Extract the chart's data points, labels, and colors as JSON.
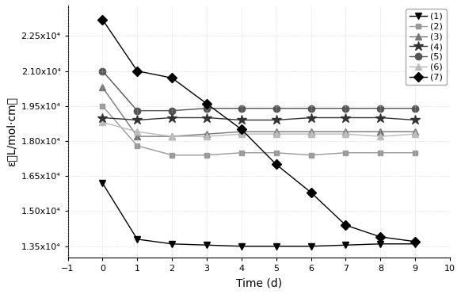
{
  "series": [
    {
      "label": "(1)",
      "marker": "v",
      "color": "#000000",
      "linestyle": "-",
      "x": [
        0,
        1,
        2,
        3,
        4,
        5,
        6,
        7,
        8,
        9
      ],
      "y": [
        16200,
        13800,
        13600,
        13550,
        13500,
        13500,
        13500,
        13550,
        13600,
        13600
      ],
      "markersize": 6,
      "linewidth": 1.0,
      "zorder": 3
    },
    {
      "label": "(2)",
      "marker": "s",
      "color": "#999999",
      "linestyle": "-",
      "x": [
        0,
        1,
        2,
        3,
        4,
        5,
        6,
        7,
        8,
        9
      ],
      "y": [
        19500,
        17800,
        17400,
        17400,
        17500,
        17500,
        17400,
        17500,
        17500,
        17500
      ],
      "markersize": 5,
      "linewidth": 1.0,
      "zorder": 2
    },
    {
      "label": "(3)",
      "marker": "^",
      "color": "#777777",
      "linestyle": "-",
      "x": [
        0,
        1,
        2,
        3,
        4,
        5,
        6,
        7,
        8,
        9
      ],
      "y": [
        20300,
        18200,
        18200,
        18300,
        18400,
        18400,
        18400,
        18400,
        18400,
        18400
      ],
      "markersize": 6,
      "linewidth": 1.0,
      "zorder": 2
    },
    {
      "label": "(4)",
      "marker": "*",
      "color": "#333333",
      "linestyle": "-",
      "x": [
        0,
        1,
        2,
        3,
        4,
        5,
        6,
        7,
        8,
        9
      ],
      "y": [
        19000,
        18900,
        19000,
        19000,
        18900,
        18900,
        19000,
        19000,
        19000,
        18900
      ],
      "markersize": 9,
      "linewidth": 1.0,
      "zorder": 3
    },
    {
      "label": "(5)",
      "marker": "o",
      "color": "#555555",
      "linestyle": "-",
      "x": [
        0,
        1,
        2,
        3,
        4,
        5,
        6,
        7,
        8,
        9
      ],
      "y": [
        21000,
        19300,
        19300,
        19400,
        19400,
        19400,
        19400,
        19400,
        19400,
        19400
      ],
      "markersize": 6,
      "linewidth": 1.0,
      "zorder": 2
    },
    {
      "label": "(6)",
      "marker": "^",
      "color": "#bbbbbb",
      "linestyle": "-",
      "x": [
        0,
        1,
        2,
        3,
        4,
        5,
        6,
        7,
        8,
        9
      ],
      "y": [
        18800,
        18400,
        18200,
        18200,
        18300,
        18300,
        18300,
        18300,
        18200,
        18300
      ],
      "markersize": 6,
      "linewidth": 1.0,
      "zorder": 2
    },
    {
      "label": "(7)",
      "marker": "D",
      "color": "#000000",
      "linestyle": "-",
      "x": [
        0,
        1,
        2,
        3,
        4,
        5,
        6,
        7,
        8,
        9
      ],
      "y": [
        23200,
        21000,
        20700,
        19600,
        18500,
        17000,
        15800,
        14400,
        13900,
        13700
      ],
      "markersize": 6,
      "linewidth": 1.0,
      "zorder": 3
    }
  ],
  "xlabel": "Time (d)",
  "ylabel": "ε（L/mol·cm）",
  "xlim": [
    -1,
    10
  ],
  "ylim": [
    13000,
    23800
  ],
  "yticks": [
    13500,
    15000,
    16500,
    18000,
    19500,
    21000,
    22500
  ],
  "ytick_labels": [
    "1.35x10⁴",
    "1.50x10⁴",
    "1.65x10⁴",
    "1.80x10⁴",
    "1.95x10⁴",
    "2.10x10⁴",
    "2.25x10⁴"
  ],
  "xticks": [
    -1,
    0,
    1,
    2,
    3,
    4,
    5,
    6,
    7,
    8,
    9,
    10
  ],
  "axis_fontsize": 10,
  "tick_fontsize": 8,
  "legend_fontsize": 8,
  "background_color": "#ffffff",
  "grid": true,
  "grid_color": "#cccccc",
  "grid_linestyle": ":"
}
